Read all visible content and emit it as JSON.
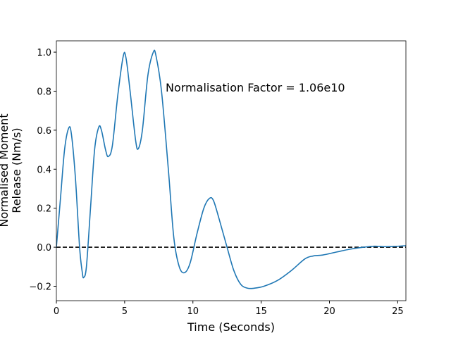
{
  "chart_data": {
    "type": "line",
    "xlabel": "Time (Seconds)",
    "ylabel": [
      "Normalised Moment",
      "Release (Nm/s)"
    ],
    "annotation": "Normalisation Factor = 1.06e10",
    "xlim": [
      0,
      25.6
    ],
    "ylim": [
      -0.274,
      1.058
    ],
    "xticks": [
      0,
      5,
      10,
      15,
      20,
      25
    ],
    "yticks": [
      {
        "value": -0.2,
        "label": "−0.2"
      },
      {
        "value": 0.0,
        "label": "0.0"
      },
      {
        "value": 0.2,
        "label": "0.2"
      },
      {
        "value": 0.4,
        "label": "0.4"
      },
      {
        "value": 0.6,
        "label": "0.6"
      },
      {
        "value": 0.8,
        "label": "0.8"
      },
      {
        "value": 1.0,
        "label": "1.0"
      }
    ],
    "reference_line": {
      "y": 0,
      "color": "#000000",
      "style": "dashed"
    },
    "series": [
      {
        "color": "#1f77b4",
        "x": [
          0,
          0.3,
          0.6,
          0.9,
          1.1,
          1.4,
          1.7,
          1.9,
          2.0,
          2.2,
          2.5,
          2.8,
          3.1,
          3.3,
          3.6,
          3.8,
          4.1,
          4.5,
          4.9,
          5.1,
          5.4,
          5.8,
          6.0,
          6.3,
          6.7,
          7.1,
          7.3,
          7.7,
          8.2,
          8.6,
          9.0,
          9.4,
          9.8,
          10.3,
          10.8,
          11.2,
          11.5,
          11.9,
          12.5,
          13.0,
          13.5,
          14.0,
          14.5,
          15.2,
          16.2,
          17.2,
          18.2,
          18.8,
          19.5,
          20.5,
          21.5,
          22.5,
          23.3,
          24.0,
          24.7,
          25.6
        ],
        "values": [
          0.0,
          0.25,
          0.5,
          0.61,
          0.58,
          0.35,
          0.0,
          -0.13,
          -0.155,
          -0.1,
          0.2,
          0.5,
          0.615,
          0.6,
          0.5,
          0.465,
          0.52,
          0.78,
          0.98,
          0.97,
          0.8,
          0.55,
          0.505,
          0.6,
          0.88,
          1.0,
          0.98,
          0.8,
          0.4,
          0.05,
          -0.1,
          -0.13,
          -0.08,
          0.07,
          0.2,
          0.25,
          0.24,
          0.15,
          0.0,
          -0.12,
          -0.19,
          -0.21,
          -0.21,
          -0.2,
          -0.17,
          -0.12,
          -0.06,
          -0.045,
          -0.04,
          -0.025,
          -0.01,
          0.0,
          0.005,
          0.003,
          0.004,
          0.008
        ]
      }
    ]
  }
}
